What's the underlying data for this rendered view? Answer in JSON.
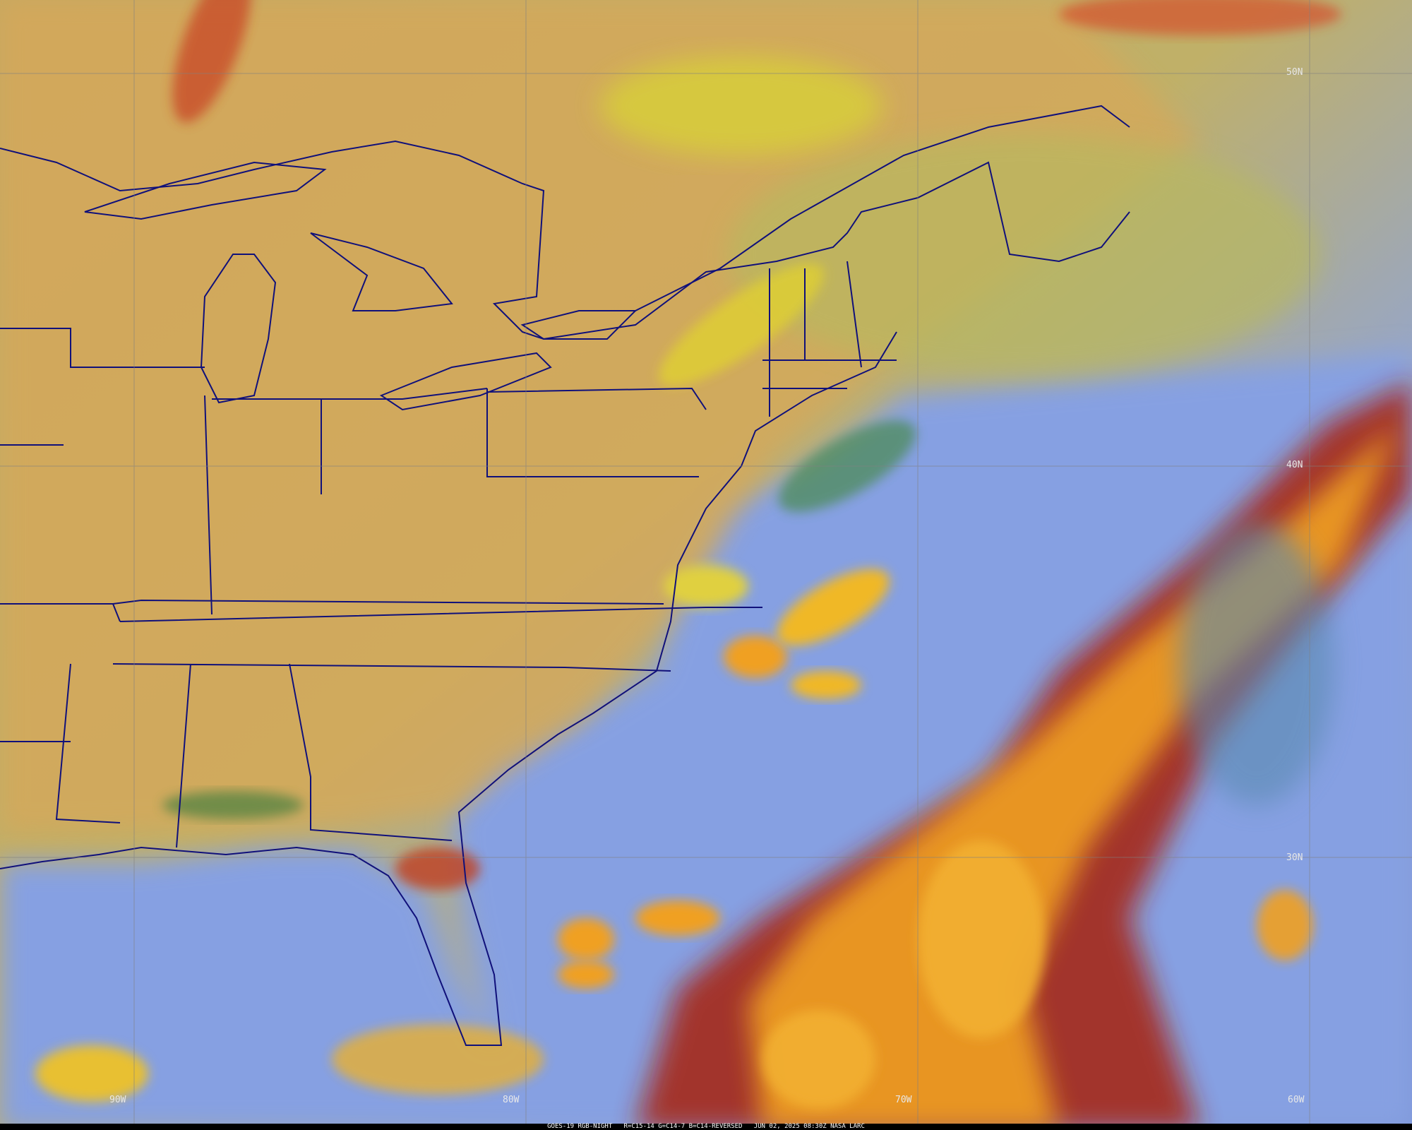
{
  "caption": "GOES-19 RGB-NIGHT   R=C15-14 G=C14-7 B=C14-REVERSED   JUN 02, 2025 08:30Z NASA LARC",
  "grid_labels": {
    "lat": [
      "50N",
      "40N",
      "30N"
    ],
    "lon": [
      "90W",
      "80W",
      "70W",
      "60W"
    ]
  },
  "colors": {
    "land": "#d4a85a",
    "ocean_clear": "#8aa0e0",
    "cloud_high": "#f0a020",
    "cloud_deep": "#a01818",
    "low_cloud": "#d8d040",
    "borders": "#10107a",
    "grid": "#808080"
  }
}
